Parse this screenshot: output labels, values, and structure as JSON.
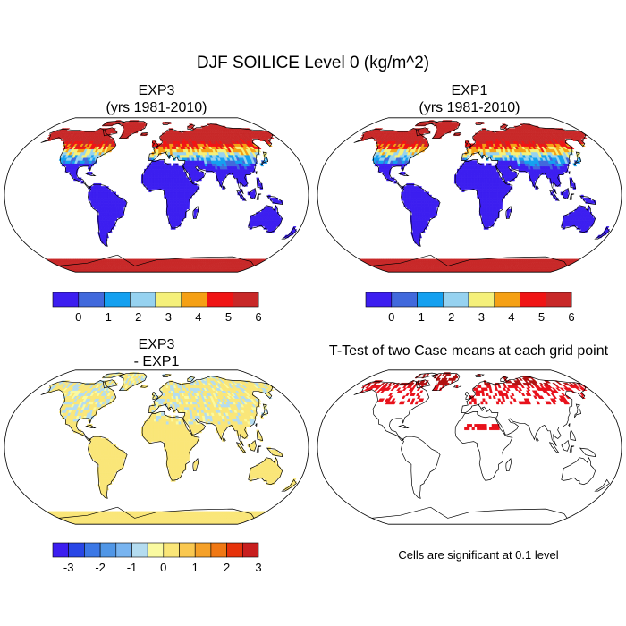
{
  "figure": {
    "title": "DJF SOILICE Level 0 (kg/m^2)",
    "note": "Cells are significant at 0.1 level"
  },
  "colors": {
    "ocean": "#ffffff",
    "coast": "#000000",
    "sig_cell": "#e8101a",
    "sig_cell_dark": "#b01010"
  },
  "chart_data": [
    {
      "type": "heatmap",
      "id": "exp3",
      "title_line1": "EXP3",
      "title_line2": "(yrs 1981-2010)",
      "projection": "robinson",
      "field": "absolute",
      "colorbar": {
        "colors": [
          "#3c1ef0",
          "#4169dc",
          "#14a0f0",
          "#96d2f0",
          "#f5f07a",
          "#f5a014",
          "#f01414",
          "#c82828"
        ],
        "tick_labels": [
          "0",
          "1",
          "2",
          "3",
          "4",
          "5",
          "6"
        ]
      }
    },
    {
      "type": "heatmap",
      "id": "exp1",
      "title_line1": "EXP1",
      "title_line2": "(yrs 1981-2010)",
      "projection": "robinson",
      "field": "absolute",
      "colorbar": {
        "colors": [
          "#3c1ef0",
          "#4169dc",
          "#14a0f0",
          "#96d2f0",
          "#f5f07a",
          "#f5a014",
          "#f01414",
          "#c82828"
        ],
        "tick_labels": [
          "0",
          "1",
          "2",
          "3",
          "4",
          "5",
          "6"
        ]
      }
    },
    {
      "type": "heatmap",
      "id": "diff",
      "title_line1": "EXP3",
      "title_line2": "- EXP1",
      "projection": "robinson",
      "field": "difference",
      "colorbar": {
        "colors": [
          "#3c1ef0",
          "#2846e6",
          "#3c78e6",
          "#5096e6",
          "#78b4f0",
          "#b4dcf0",
          "#fafaa0",
          "#fae678",
          "#fac850",
          "#f5a028",
          "#f07814",
          "#e6320a",
          "#c81e1e"
        ],
        "tick_labels": [
          "-3",
          "-2",
          "-1",
          "0",
          "1",
          "2",
          "3"
        ]
      }
    },
    {
      "type": "heatmap",
      "id": "ttest",
      "title_line1": "T-Test of two Case means at each grid point",
      "title_line2": "",
      "projection": "robinson",
      "field": "significance",
      "significance_level": 0.1
    }
  ]
}
